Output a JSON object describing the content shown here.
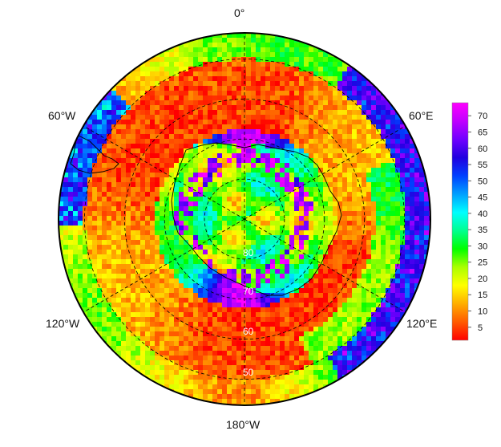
{
  "map": {
    "projection": "south-polar-stereographic",
    "longitude_labels": {
      "top": "0°",
      "upper_left": "60°W",
      "upper_right": "60°E",
      "lower_left": "120°W",
      "lower_right": "120°E",
      "bottom": "180°W"
    },
    "latitude_labels": [
      "80",
      "70",
      "60",
      "50"
    ],
    "grid": "dashed",
    "coastline": "Antarctica + southern tip of South America",
    "field": "gridded scalar field, low values (red) over Southern Ocean ring, high values (blue/purple) near Antarctic coast"
  },
  "colorbar": {
    "ticks": [
      "70",
      "65",
      "60",
      "55",
      "50",
      "45",
      "40",
      "35",
      "30",
      "25",
      "20",
      "15",
      "10",
      "5"
    ],
    "range": [
      1,
      74
    ],
    "colormap": [
      "#ff0000",
      "#ff5a00",
      "#ffae00",
      "#ffff00",
      "#aaff00",
      "#00ff00",
      "#00ff90",
      "#00ffff",
      "#00a0ff",
      "#0040ff",
      "#2000e0",
      "#7000ff",
      "#c000ff",
      "#ff00ff"
    ]
  }
}
